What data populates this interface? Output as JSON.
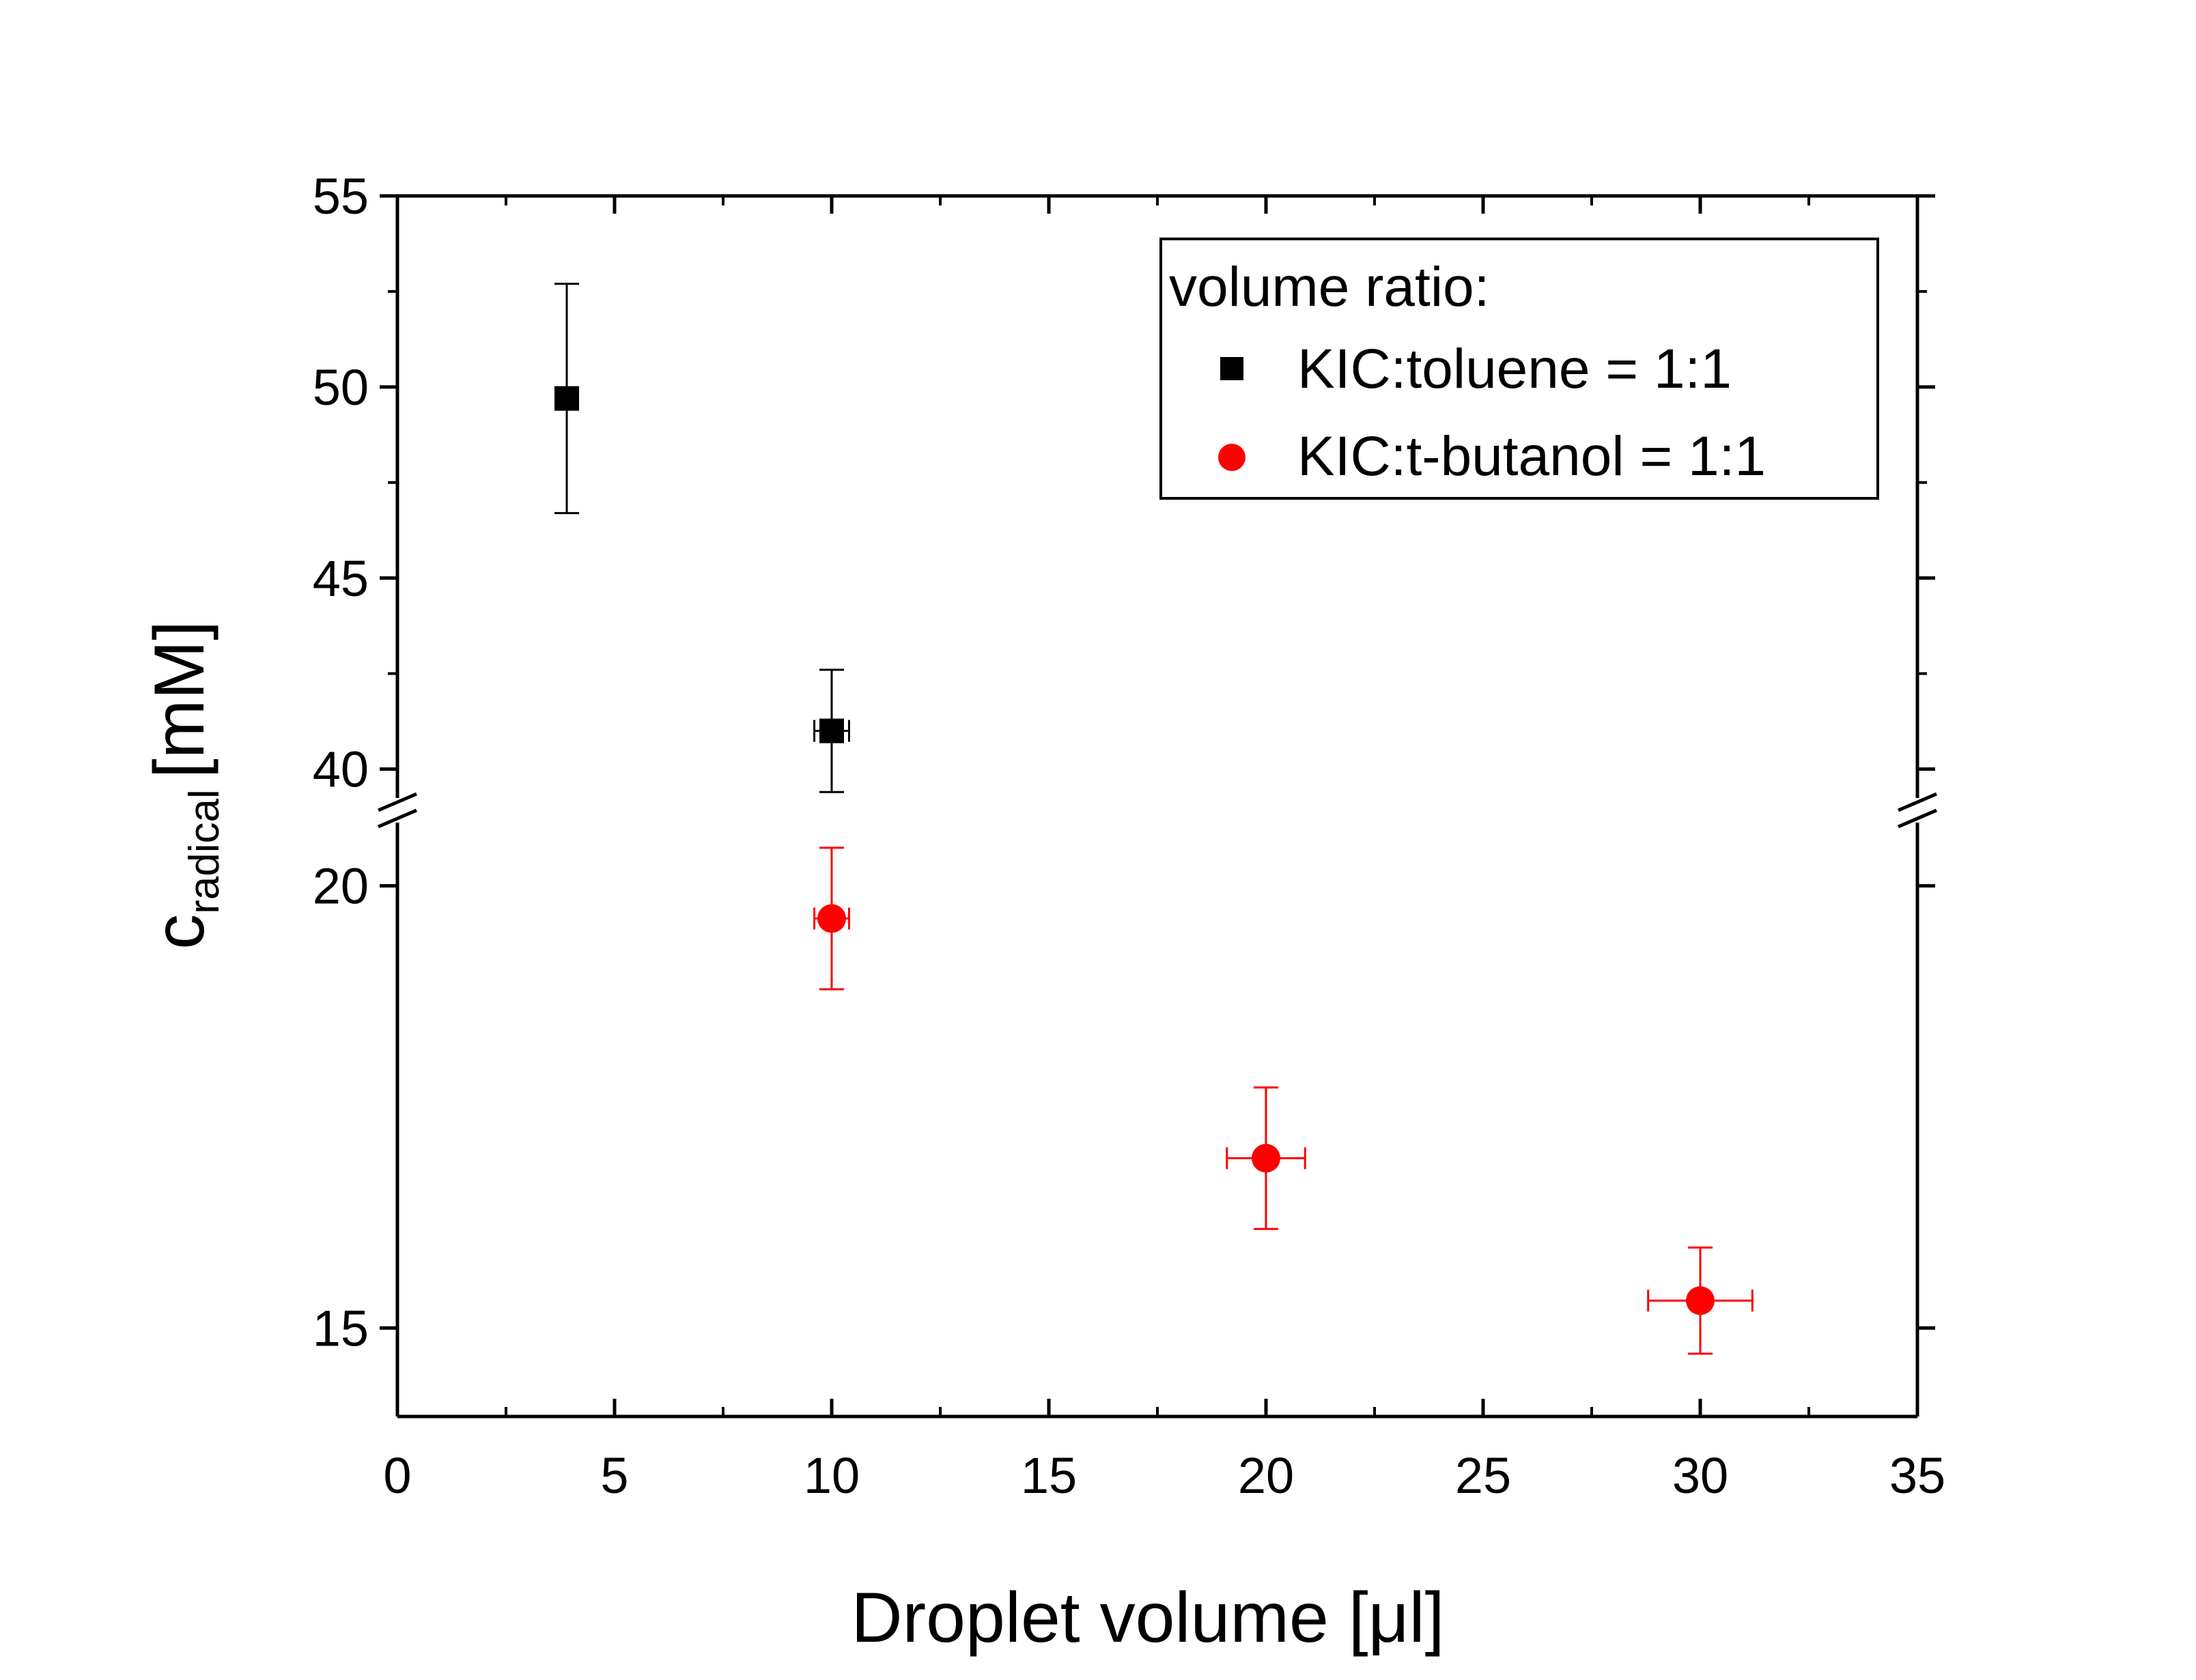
{
  "chart_data": {
    "type": "scatter",
    "xlabel": "Droplet volume [μl]",
    "ylabel": {
      "main": "c",
      "subscript": "radical",
      "unit": "[mM]"
    },
    "xlim": [
      0,
      35
    ],
    "x_ticks": [
      "0",
      "5",
      "10",
      "15",
      "20",
      "25",
      "30",
      "35"
    ],
    "y_axis_break": true,
    "y_upper_segment": {
      "ylim": [
        38.6,
        55
      ],
      "ticks": [
        "40",
        "45",
        "50",
        "55"
      ]
    },
    "y_lower_segment": {
      "ylim": [
        14.0,
        21.0
      ],
      "ticks": [
        "15",
        "20"
      ]
    },
    "legend": {
      "title": "volume ratio:",
      "position": "top-right"
    },
    "series": [
      {
        "name": "KIC:toluene = 1:1",
        "color": "#000000",
        "marker": "square",
        "segment": "upper",
        "points": [
          {
            "x": 3.9,
            "y": 49.7,
            "yerr": 3.0,
            "xerr": 0
          },
          {
            "x": 10.0,
            "y": 41.0,
            "yerr": 1.6,
            "xerr": 0.4
          }
        ]
      },
      {
        "name": "KIC:t-butanol = 1:1",
        "color": "#ff0000",
        "marker": "circle",
        "segment": "lower",
        "points": [
          {
            "x": 10.0,
            "y": 19.63,
            "yerr": 0.8,
            "xerr": 0.4
          },
          {
            "x": 20.0,
            "y": 16.92,
            "yerr": 0.8,
            "xerr": 0.9
          },
          {
            "x": 30.0,
            "y": 15.31,
            "yerr": 0.6,
            "xerr": 1.2
          }
        ]
      }
    ]
  }
}
